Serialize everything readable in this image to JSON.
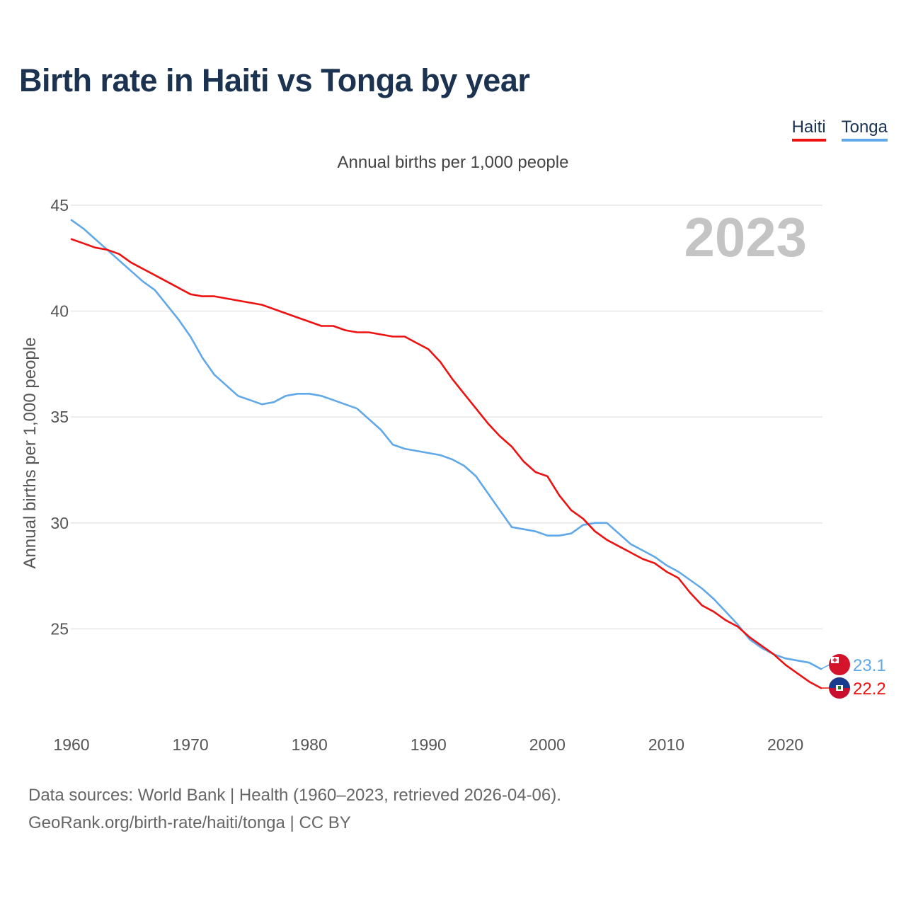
{
  "title": "Birth rate in Haiti vs Tonga by year",
  "subtitle": "Annual births per 1,000 people",
  "legend": [
    {
      "name": "Haiti",
      "color": "#ee1111"
    },
    {
      "name": "Tonga",
      "color": "#60a8e8"
    }
  ],
  "year_watermark": "2023",
  "footer": {
    "line1": "Data sources: World Bank | Health (1960–2023, retrieved 2026-04-06).",
    "line2": "GeoRank.org/birth-rate/haiti/tonga | CC BY"
  },
  "chart_data": {
    "type": "line",
    "title": "Birth rate in Haiti vs Tonga by year",
    "xlabel": "",
    "ylabel": "Annual births per 1,000 people",
    "xlim": [
      1960,
      2023
    ],
    "ylim": [
      21,
      45
    ],
    "y_ticks": [
      25,
      30,
      35,
      40,
      45
    ],
    "x_ticks": [
      1960,
      1970,
      1980,
      1990,
      2000,
      2010,
      2020
    ],
    "grid": true,
    "legend_position": "top-right",
    "x": [
      1960,
      1961,
      1962,
      1963,
      1964,
      1965,
      1966,
      1967,
      1968,
      1969,
      1970,
      1971,
      1972,
      1973,
      1974,
      1975,
      1976,
      1977,
      1978,
      1979,
      1980,
      1981,
      1982,
      1983,
      1984,
      1985,
      1986,
      1987,
      1988,
      1989,
      1990,
      1991,
      1992,
      1993,
      1994,
      1995,
      1996,
      1997,
      1998,
      1999,
      2000,
      2001,
      2002,
      2003,
      2004,
      2005,
      2006,
      2007,
      2008,
      2009,
      2010,
      2011,
      2012,
      2013,
      2014,
      2015,
      2016,
      2017,
      2018,
      2019,
      2020,
      2021,
      2022,
      2023
    ],
    "series": [
      {
        "name": "Haiti",
        "color": "#ee1111",
        "end_label": "22.2",
        "values": [
          43.4,
          43.2,
          43.0,
          42.9,
          42.7,
          42.3,
          42.0,
          41.7,
          41.4,
          41.1,
          40.8,
          40.7,
          40.7,
          40.6,
          40.5,
          40.4,
          40.3,
          40.1,
          39.9,
          39.7,
          39.5,
          39.3,
          39.3,
          39.1,
          39.0,
          39.0,
          38.9,
          38.8,
          38.8,
          38.5,
          38.2,
          37.6,
          36.8,
          36.1,
          35.4,
          34.7,
          34.1,
          33.6,
          32.9,
          32.4,
          32.2,
          31.3,
          30.6,
          30.2,
          29.6,
          29.2,
          28.9,
          28.6,
          28.3,
          28.1,
          27.7,
          27.4,
          26.7,
          26.1,
          25.8,
          25.4,
          25.1,
          24.6,
          24.2,
          23.8,
          23.3,
          22.9,
          22.5,
          22.2
        ]
      },
      {
        "name": "Tonga",
        "color": "#60a8e8",
        "end_label": "23.1",
        "values": [
          44.3,
          43.9,
          43.4,
          42.9,
          42.4,
          41.9,
          41.4,
          41.0,
          40.3,
          39.6,
          38.8,
          37.8,
          37.0,
          36.5,
          36.0,
          35.8,
          35.6,
          35.7,
          36.0,
          36.1,
          36.1,
          36.0,
          35.8,
          35.6,
          35.4,
          34.9,
          34.4,
          33.7,
          33.5,
          33.4,
          33.3,
          33.2,
          33.0,
          32.7,
          32.2,
          31.4,
          30.6,
          29.8,
          29.7,
          29.6,
          29.4,
          29.4,
          29.5,
          29.9,
          30.0,
          30.0,
          29.5,
          29.0,
          28.7,
          28.4,
          28.0,
          27.7,
          27.3,
          26.9,
          26.4,
          25.8,
          25.2,
          24.5,
          24.1,
          23.8,
          23.6,
          23.5,
          23.4,
          23.1
        ]
      }
    ]
  }
}
